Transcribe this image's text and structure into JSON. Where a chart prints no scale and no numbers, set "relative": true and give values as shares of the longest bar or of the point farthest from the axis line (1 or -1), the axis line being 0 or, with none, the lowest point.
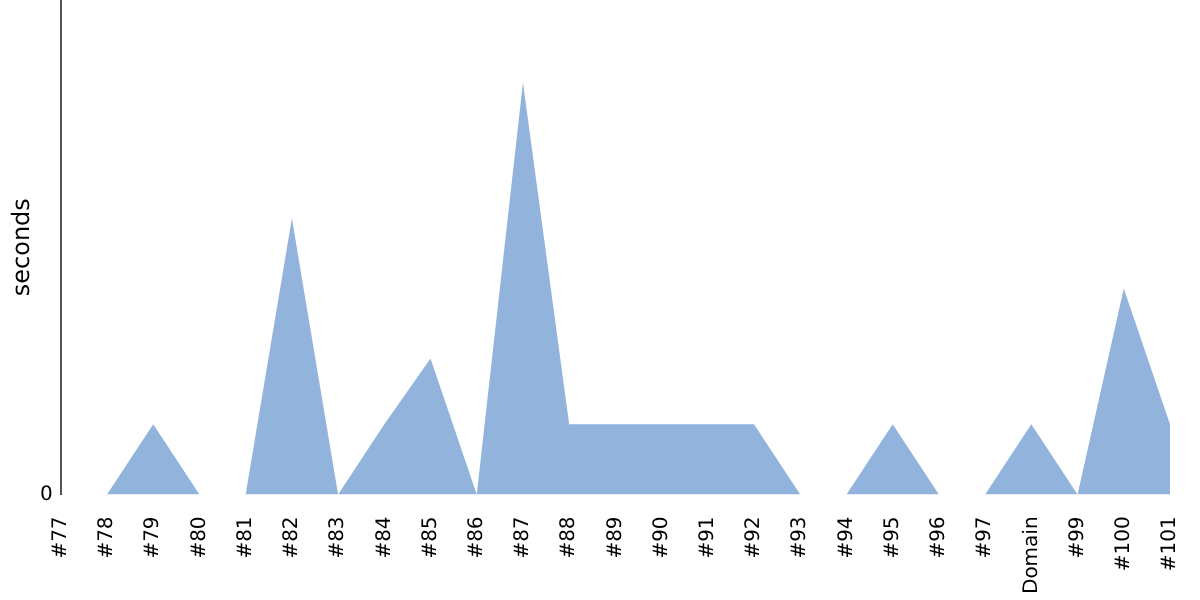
{
  "chart_data": {
    "type": "area",
    "ylabel": "seconds",
    "relative": true,
    "annotations": [
      "0"
    ],
    "legend": false,
    "categories": [
      "#77",
      "#78",
      "#79",
      "#80",
      "#81",
      "#82",
      "#83",
      "#84",
      "#85",
      "#86",
      "#87",
      "#88",
      "#89",
      "#90",
      "#91",
      "#92",
      "#93",
      "#94",
      "#95",
      "#96",
      "#97",
      "Domain",
      "#99",
      "#100",
      "#101"
    ],
    "series": [
      {
        "color": "#92b3dc",
        "values": [
          0,
          0,
          0.17,
          0,
          0,
          0.67,
          0,
          0.17,
          0.33,
          0,
          1,
          0.17,
          0.17,
          0.17,
          0.17,
          0.17,
          0,
          0,
          0.17,
          0,
          0,
          0.17,
          0,
          0.5,
          0.17
        ]
      }
    ]
  }
}
